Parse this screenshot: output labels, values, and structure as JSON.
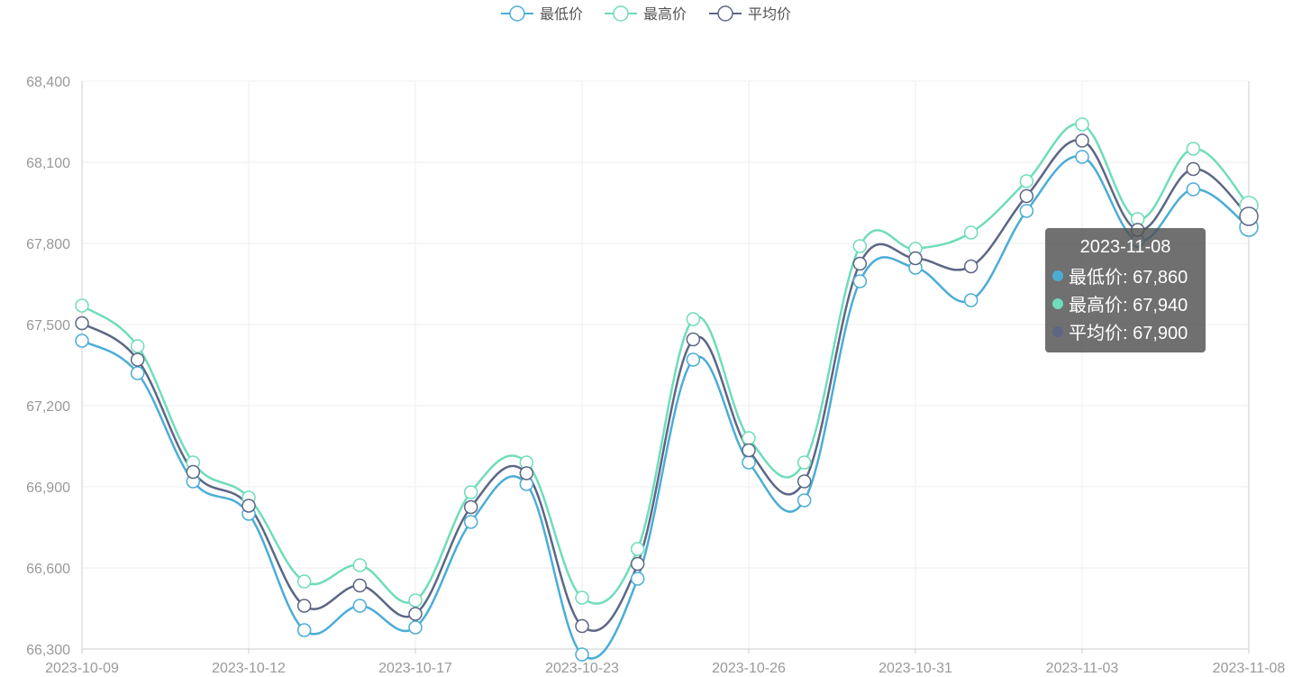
{
  "colors": {
    "min": "#4badd6",
    "max": "#6fdcbb",
    "avg": "#5d6685",
    "grid": "#eeeeee",
    "axis": "#cccccc",
    "tick": "#999999"
  },
  "chart_data": {
    "type": "line",
    "x": [
      "2023-10-09",
      "2023-10-10",
      "2023-10-11",
      "2023-10-12",
      "2023-10-13",
      "2023-10-16",
      "2023-10-17",
      "2023-10-18",
      "2023-10-19",
      "2023-10-23",
      "2023-10-24",
      "2023-10-25",
      "2023-10-26",
      "2023-10-27",
      "2023-10-30",
      "2023-10-31",
      "2023-11-01",
      "2023-11-02",
      "2023-11-03",
      "2023-11-06",
      "2023-11-07",
      "2023-11-08"
    ],
    "x_tick_labels": [
      "2023-10-09",
      "2023-10-12",
      "2023-10-17",
      "2023-10-23",
      "2023-10-26",
      "2023-10-31",
      "2023-11-03",
      "2023-11-08"
    ],
    "x_tick_indices": [
      0,
      3,
      6,
      9,
      12,
      15,
      18,
      21
    ],
    "series": [
      {
        "name": "最低价",
        "color_key": "min",
        "values": [
          67440,
          67320,
          66920,
          66800,
          66370,
          66460,
          66380,
          66770,
          66910,
          66280,
          66560,
          67370,
          66990,
          66850,
          67660,
          67710,
          67590,
          67920,
          68120,
          67810,
          68000,
          67860
        ]
      },
      {
        "name": "最高价",
        "color_key": "max",
        "values": [
          67570,
          67420,
          66990,
          66860,
          66550,
          66610,
          66480,
          66880,
          66990,
          66490,
          66670,
          67520,
          67080,
          66990,
          67790,
          67780,
          67840,
          68030,
          68240,
          67890,
          68150,
          67940
        ]
      },
      {
        "name": "平均价",
        "color_key": "avg",
        "values": [
          67505,
          67370,
          66955,
          66830,
          66460,
          66535,
          66430,
          66825,
          66950,
          66385,
          66615,
          67445,
          67035,
          66920,
          67725,
          67745,
          67715,
          67975,
          68180,
          67850,
          68075,
          67900
        ]
      }
    ],
    "ylim": [
      66300,
      68400
    ],
    "y_ticks": [
      66300,
      66600,
      66900,
      67200,
      67500,
      67800,
      68100,
      68400
    ],
    "y_tick_labels": [
      "66,300",
      "66,600",
      "66,900",
      "67,200",
      "67,500",
      "67,800",
      "68,100",
      "68,400"
    ],
    "grid": true,
    "legend_position": "top-center",
    "smooth": true
  },
  "tooltip": {
    "title": "2023-11-08",
    "rows": [
      {
        "text": "最低价: 67,860",
        "color_key": "min"
      },
      {
        "text": "最高价: 67,940",
        "color_key": "max"
      },
      {
        "text": "平均价: 67,900",
        "color_key": "avg"
      }
    ]
  }
}
